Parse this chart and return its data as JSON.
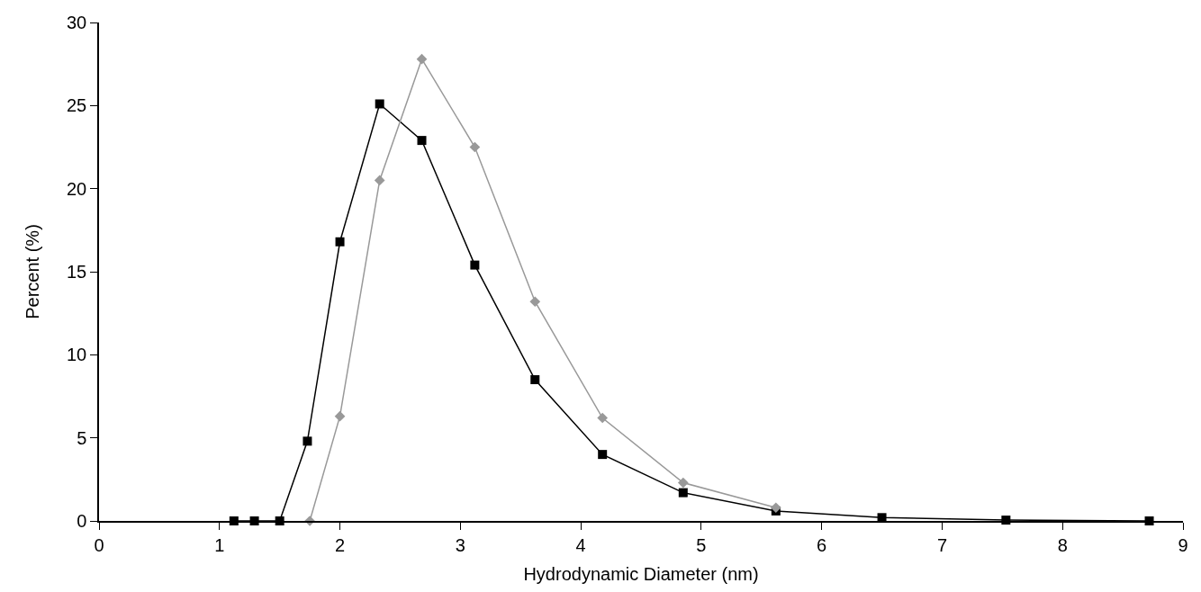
{
  "chart_data": {
    "type": "line",
    "xlabel": "Hydrodynamic Diameter (nm)",
    "ylabel": "Percent (%)",
    "xlim": [
      0,
      9
    ],
    "xticks": [
      0,
      1,
      2,
      3,
      4,
      5,
      6,
      7,
      8,
      9
    ],
    "ylim": [
      0,
      30
    ],
    "yticks": [
      0,
      5,
      10,
      15,
      20,
      25,
      30
    ],
    "series": [
      {
        "color": "#000000",
        "marker": "square",
        "x": [
          1.12,
          1.29,
          1.5,
          1.73,
          2.0,
          2.33,
          2.68,
          3.12,
          3.62,
          4.18,
          4.85,
          5.62,
          6.5,
          7.53,
          8.72
        ],
        "values": [
          0,
          0,
          0,
          4.8,
          16.8,
          25.1,
          22.9,
          15.4,
          8.5,
          4.0,
          1.7,
          0.6,
          0.2,
          0.05,
          0
        ]
      },
      {
        "color": "#999999",
        "marker": "diamond",
        "x": [
          1.75,
          2.0,
          2.33,
          2.68,
          3.12,
          3.62,
          4.18,
          4.85,
          5.62
        ],
        "values": [
          0,
          6.3,
          20.5,
          27.8,
          22.5,
          13.2,
          6.2,
          2.3,
          0.8
        ]
      }
    ]
  }
}
